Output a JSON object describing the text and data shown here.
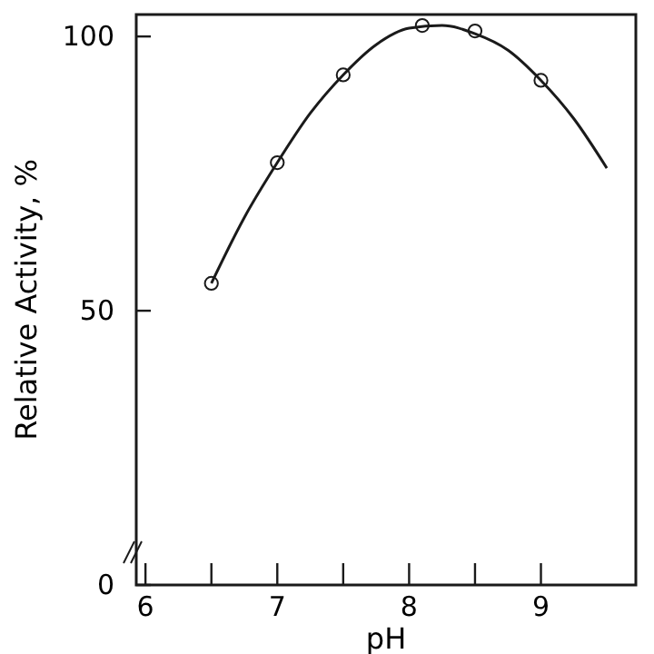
{
  "chart_data": {
    "type": "scatter",
    "xlabel": "pH",
    "ylabel": "Relative Activity, %",
    "xlim": [
      5.93,
      9.72
    ],
    "ylim": [
      0,
      104
    ],
    "xticks": [
      6,
      {
        "value": 6.5,
        "label": null
      },
      7,
      {
        "value": 7.5,
        "label": null
      },
      8,
      {
        "value": 8.5,
        "label": null
      },
      9
    ],
    "yticks": [
      0,
      50,
      100
    ],
    "grid": false,
    "series": [
      {
        "color": "#1a1a1a",
        "marker": "circle",
        "x": [
          6.5,
          7,
          7.5,
          8.1,
          8.5,
          9
        ],
        "values": [
          55,
          77,
          93,
          102,
          101,
          92
        ]
      },
      {
        "type": "line",
        "color": "#1a1a1a",
        "marker": "none",
        "line_style": "solid",
        "x": [
          6.5,
          6.75,
          7,
          7.25,
          7.5,
          7.75,
          8,
          8.25,
          8.5,
          8.75,
          9,
          9.25,
          9.5
        ],
        "values": [
          55,
          67,
          77,
          86,
          93,
          98.5,
          101.5,
          102,
          100.5,
          97.5,
          92,
          85,
          76
        ]
      }
    ]
  }
}
